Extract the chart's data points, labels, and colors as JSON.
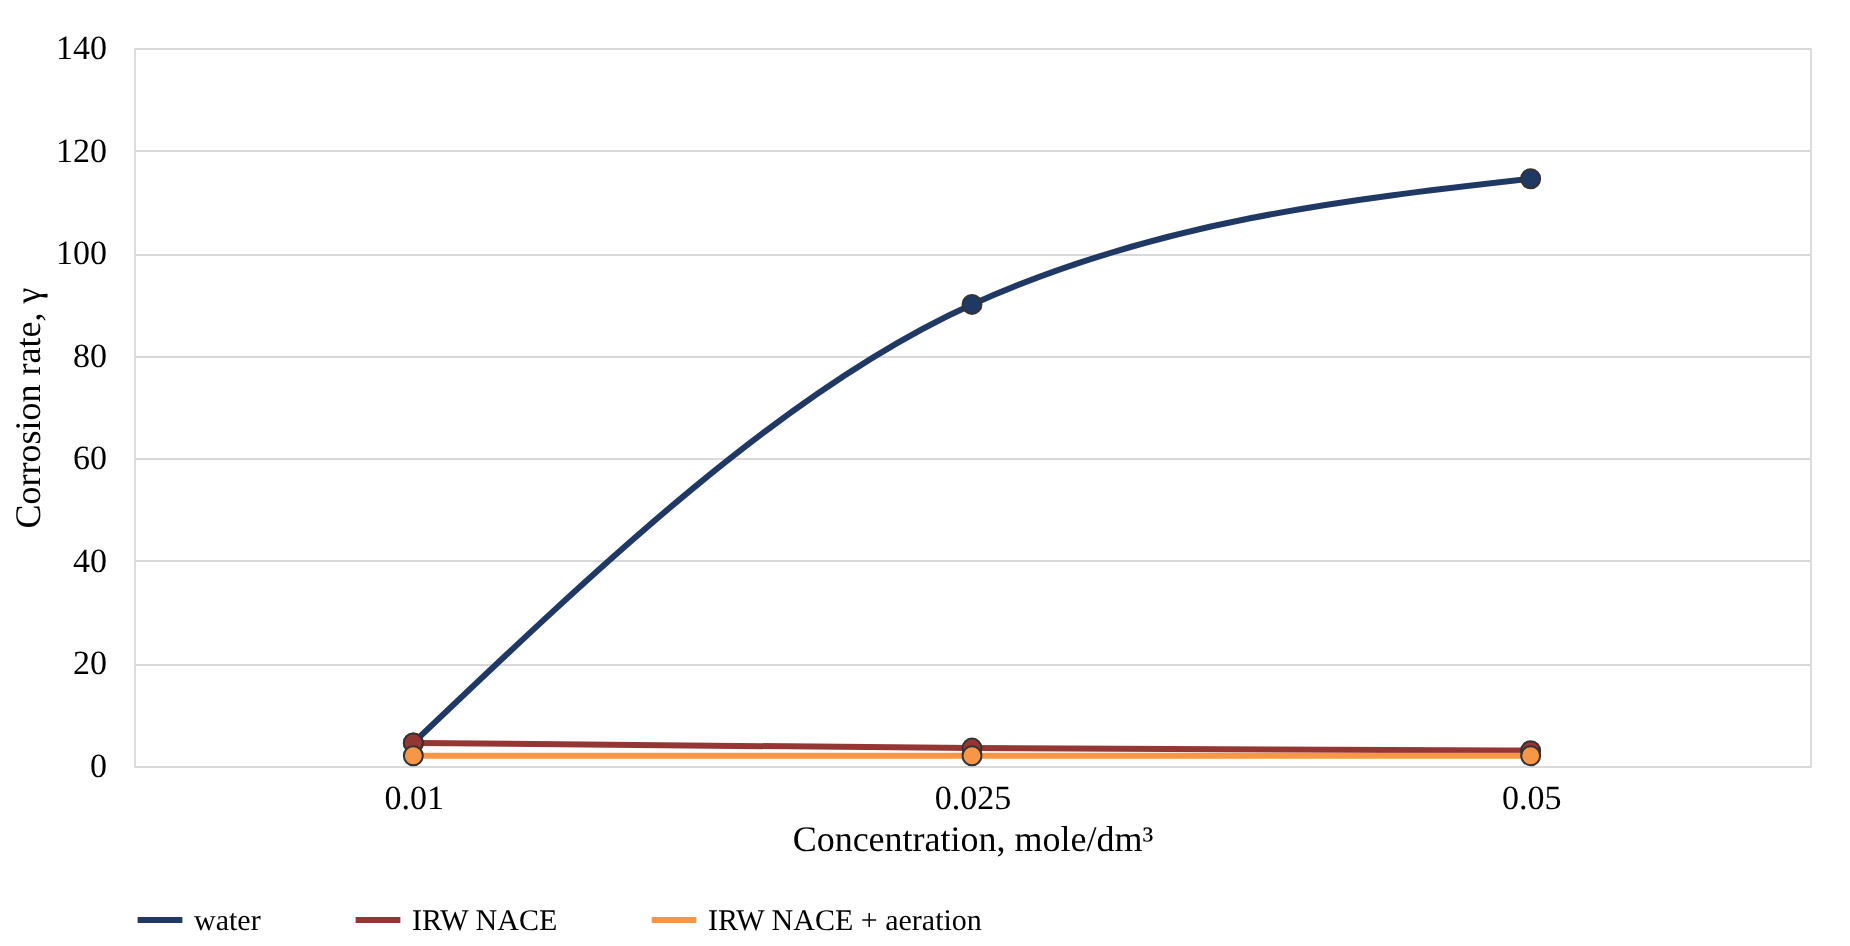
{
  "chart_data": {
    "type": "line",
    "xlabel": "Concentration, mole/dm³",
    "ylabel": "Corrosion rate, γ",
    "categories": [
      "0.01",
      "0.025",
      "0.05"
    ],
    "series": [
      {
        "name": "water",
        "color": "#1f3864",
        "values": [
          4.5,
          90,
          114.5
        ]
      },
      {
        "name": "IRW NACE",
        "color": "#943634",
        "values": [
          4.5,
          3.5,
          3
        ]
      },
      {
        "name": "IRW NACE + aeration",
        "color": "#f79646",
        "values": [
          2,
          2,
          2
        ]
      }
    ],
    "ylim": [
      0,
      140
    ],
    "yticks": [
      0,
      20,
      40,
      60,
      80,
      100,
      120,
      140
    ],
    "grid": "y",
    "legend": "bottom",
    "marker": "circle",
    "line_style": "solid"
  }
}
